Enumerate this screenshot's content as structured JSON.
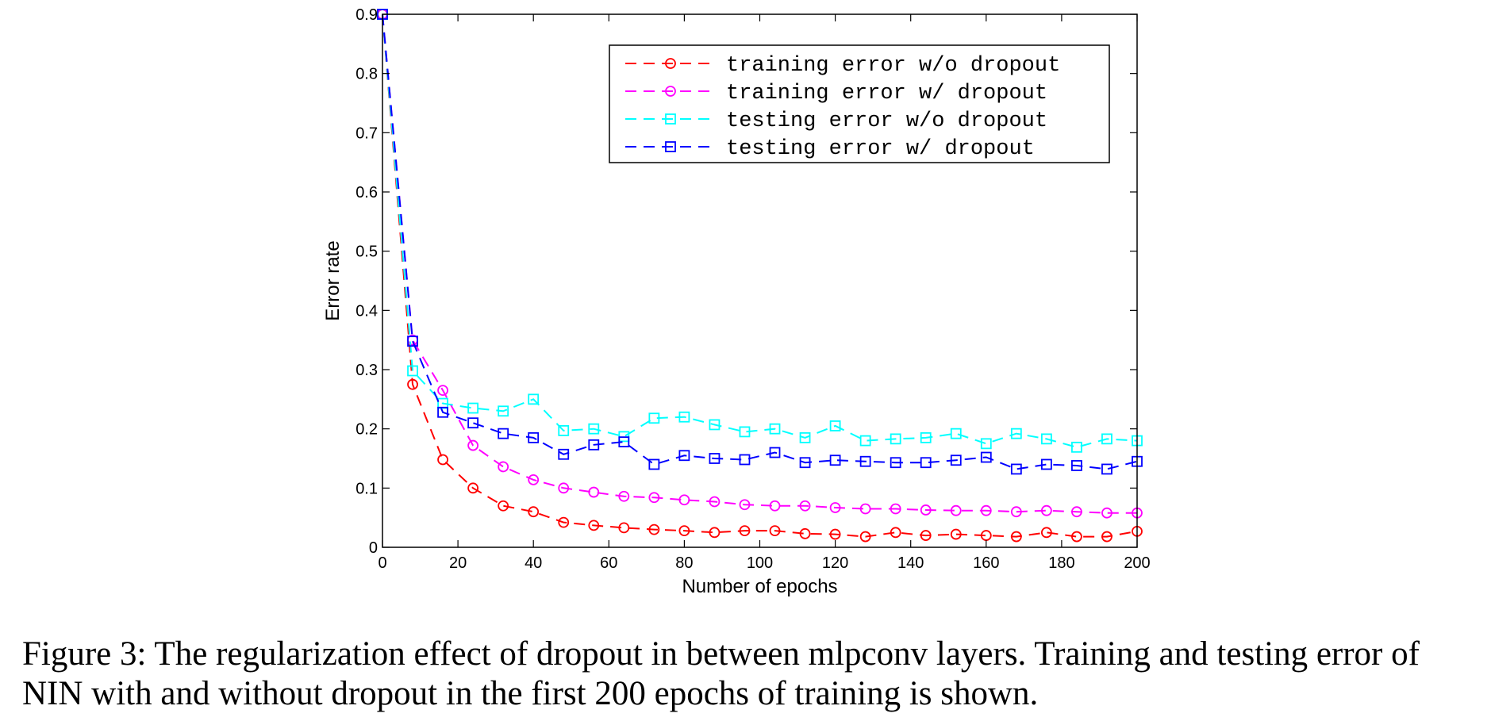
{
  "chart_data": {
    "type": "line",
    "xlabel": "Number of epochs",
    "ylabel": "Error rate",
    "xlim": [
      0,
      200
    ],
    "ylim": [
      0,
      0.9
    ],
    "xticks": [
      "0",
      "20",
      "40",
      "60",
      "80",
      "100",
      "120",
      "140",
      "160",
      "180",
      "200"
    ],
    "yticks": [
      "0",
      "0.1",
      "0.2",
      "0.3",
      "0.4",
      "0.5",
      "0.6",
      "0.7",
      "0.8",
      "0.9"
    ],
    "x": [
      0,
      8,
      16,
      24,
      32,
      40,
      48,
      56,
      64,
      72,
      80,
      88,
      96,
      104,
      112,
      120,
      128,
      136,
      144,
      152,
      160,
      168,
      176,
      184,
      192,
      200
    ],
    "grid": false,
    "legend_position": "top-right",
    "series": [
      {
        "name": "training error w/o dropout",
        "color": "#ff0000",
        "marker": "circle",
        "values": [
          0.9,
          0.275,
          0.148,
          0.1,
          0.07,
          0.06,
          0.042,
          0.037,
          0.033,
          0.03,
          0.028,
          0.025,
          0.028,
          0.028,
          0.023,
          0.022,
          0.018,
          0.025,
          0.02,
          0.022,
          0.02,
          0.018,
          0.025,
          0.018,
          0.018,
          0.027
        ]
      },
      {
        "name": "training error w/ dropout",
        "color": "#ff00ff",
        "marker": "circle",
        "values": [
          0.9,
          0.35,
          0.265,
          0.172,
          0.136,
          0.114,
          0.1,
          0.093,
          0.086,
          0.084,
          0.08,
          0.077,
          0.072,
          0.07,
          0.07,
          0.067,
          0.065,
          0.065,
          0.063,
          0.062,
          0.062,
          0.06,
          0.062,
          0.06,
          0.058,
          0.058
        ]
      },
      {
        "name": "testing error w/o dropout",
        "color": "#00ffff",
        "marker": "square",
        "values": [
          0.9,
          0.298,
          0.243,
          0.235,
          0.23,
          0.25,
          0.197,
          0.2,
          0.187,
          0.218,
          0.22,
          0.207,
          0.195,
          0.2,
          0.185,
          0.205,
          0.18,
          0.183,
          0.185,
          0.192,
          0.175,
          0.192,
          0.183,
          0.169,
          0.183,
          0.18
        ]
      },
      {
        "name": "testing error w/ dropout",
        "color": "#0000ff",
        "marker": "square",
        "values": [
          0.9,
          0.348,
          0.228,
          0.21,
          0.192,
          0.185,
          0.157,
          0.173,
          0.178,
          0.14,
          0.155,
          0.15,
          0.148,
          0.16,
          0.143,
          0.147,
          0.145,
          0.143,
          0.143,
          0.147,
          0.152,
          0.132,
          0.14,
          0.138,
          0.132,
          0.145
        ]
      }
    ]
  },
  "caption": "Figure 3: The regularization effect of dropout in between mlpconv layers. Training and testing error of NIN with and without dropout in the first 200 epochs of training is shown."
}
